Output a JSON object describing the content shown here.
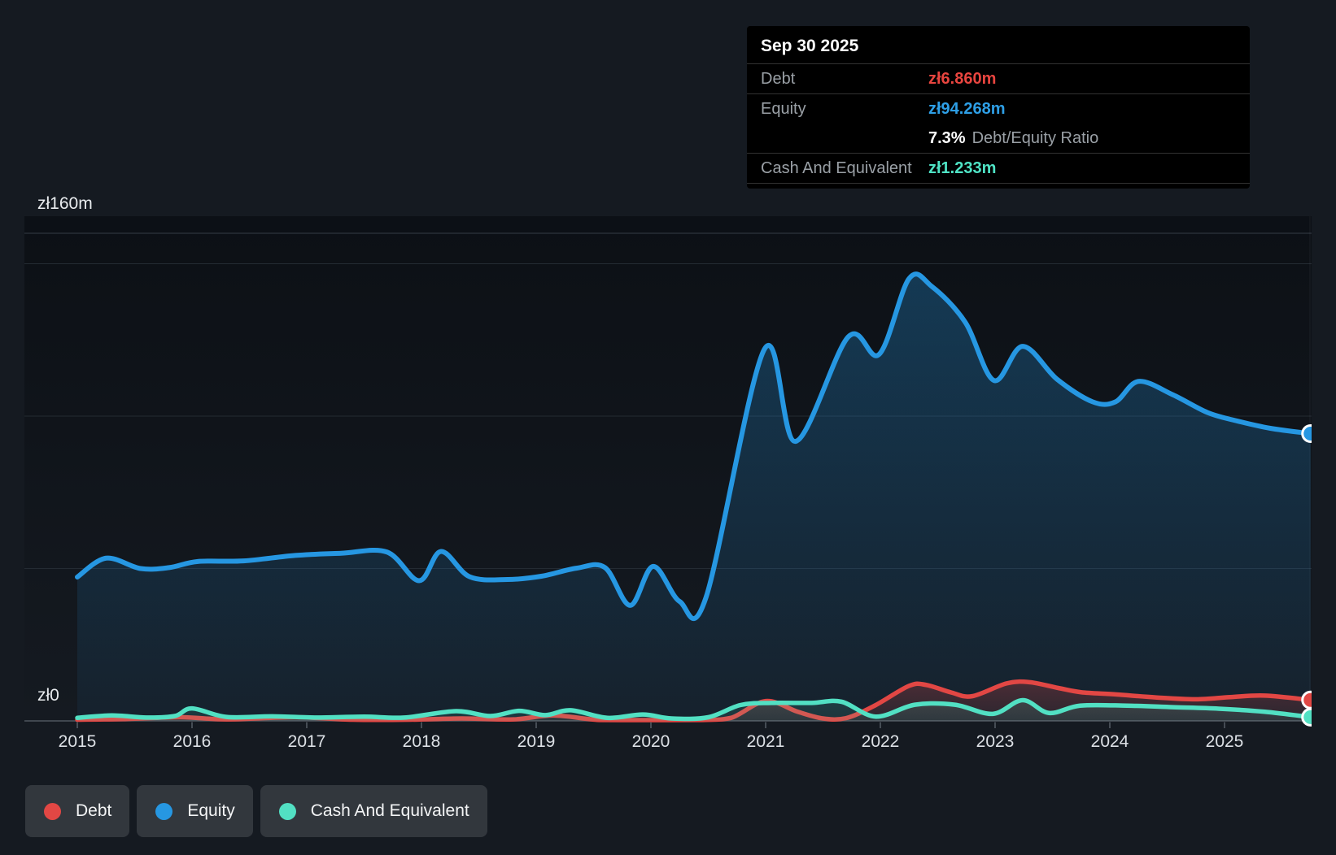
{
  "y_axis": {
    "top_label": "zł160m",
    "bottom_label": "zł0"
  },
  "x_axis": {
    "years": [
      "2015",
      "2016",
      "2017",
      "2018",
      "2019",
      "2020",
      "2021",
      "2022",
      "2023",
      "2024",
      "2025"
    ]
  },
  "tooltip": {
    "date": "Sep 30 2025",
    "rows": [
      {
        "label": "Debt",
        "value": "zł6.860m",
        "color": "#e8453f"
      },
      {
        "label": "Equity",
        "value": "zł94.268m",
        "color": "#2e9fe6"
      },
      {
        "label": "Cash And Equivalent",
        "value": "zł1.233m",
        "color": "#4fe3c5"
      }
    ],
    "ratio_value": "7.3%",
    "ratio_label": "Debt/Equity Ratio"
  },
  "legend": {
    "items": [
      {
        "label": "Debt",
        "color": "#e24744"
      },
      {
        "label": "Equity",
        "color": "#2697e2"
      },
      {
        "label": "Cash And Equivalent",
        "color": "#52e0c3"
      }
    ]
  },
  "chart_data": {
    "type": "area",
    "title": "Debt / Equity / Cash history",
    "x_unit": "decimal_year",
    "x_range": [
      2015,
      2025.75
    ],
    "y_unit": "zl_millions",
    "y_range": [
      0,
      160
    ],
    "y_gridlines_m": [
      0,
      50,
      100,
      150,
      160
    ],
    "x_tick_years": [
      2015,
      2016,
      2017,
      2018,
      2019,
      2020,
      2021,
      2022,
      2023,
      2024,
      2025
    ],
    "legend_position": "bottom-left",
    "latest": {
      "date": "Sep 30 2025",
      "debt_m": 6.86,
      "equity_m": 94.268,
      "cash_m": 1.233,
      "debt_equity_ratio_pct": 7.3
    },
    "series": [
      {
        "name": "Equity",
        "color": "#2697e2",
        "stroke_width": 6,
        "points": [
          [
            2015.0,
            47.2
          ],
          [
            2015.25,
            53.4
          ],
          [
            2015.55,
            50.0
          ],
          [
            2015.8,
            50.3
          ],
          [
            2016.05,
            52.3
          ],
          [
            2016.45,
            52.5
          ],
          [
            2016.9,
            54.3
          ],
          [
            2017.3,
            55.0
          ],
          [
            2017.7,
            55.4
          ],
          [
            2017.98,
            46.0
          ],
          [
            2018.17,
            55.6
          ],
          [
            2018.42,
            47.3
          ],
          [
            2018.75,
            46.4
          ],
          [
            2019.05,
            47.5
          ],
          [
            2019.35,
            50.1
          ],
          [
            2019.6,
            50.3
          ],
          [
            2019.82,
            37.9
          ],
          [
            2020.02,
            50.7
          ],
          [
            2020.25,
            39.2
          ],
          [
            2020.48,
            40.5
          ],
          [
            2020.99,
            122.0
          ],
          [
            2021.26,
            91.7
          ],
          [
            2021.72,
            126.0
          ],
          [
            2021.99,
            120.3
          ],
          [
            2022.25,
            145.1
          ],
          [
            2022.45,
            142.5
          ],
          [
            2022.74,
            130.8
          ],
          [
            2022.99,
            111.7
          ],
          [
            2023.24,
            122.9
          ],
          [
            2023.54,
            112.1
          ],
          [
            2023.85,
            104.7
          ],
          [
            2024.05,
            104.7
          ],
          [
            2024.25,
            111.4
          ],
          [
            2024.55,
            107.0
          ],
          [
            2024.85,
            101.2
          ],
          [
            2025.1,
            98.5
          ],
          [
            2025.4,
            96.0
          ],
          [
            2025.75,
            94.268
          ]
        ]
      },
      {
        "name": "Debt",
        "color": "#e24744",
        "stroke_width": 5.5,
        "points": [
          [
            2015.0,
            0.4
          ],
          [
            2015.4,
            0.6
          ],
          [
            2015.9,
            1.2
          ],
          [
            2016.3,
            0.5
          ],
          [
            2016.9,
            1.2
          ],
          [
            2017.4,
            0.4
          ],
          [
            2017.9,
            0.4
          ],
          [
            2018.35,
            0.8
          ],
          [
            2018.8,
            0.5
          ],
          [
            2019.15,
            1.8
          ],
          [
            2019.55,
            0.3
          ],
          [
            2020.0,
            0.2
          ],
          [
            2020.45,
            0.3
          ],
          [
            2020.7,
            1.0
          ],
          [
            2021.0,
            6.5
          ],
          [
            2021.28,
            3.0
          ],
          [
            2021.5,
            0.8
          ],
          [
            2021.7,
            0.9
          ],
          [
            2021.95,
            5.0
          ],
          [
            2022.25,
            11.5
          ],
          [
            2022.4,
            11.8
          ],
          [
            2022.62,
            9.3
          ],
          [
            2022.8,
            8.1
          ],
          [
            2023.1,
            12.3
          ],
          [
            2023.3,
            12.7
          ],
          [
            2023.55,
            10.8
          ],
          [
            2023.75,
            9.4
          ],
          [
            2024.05,
            8.7
          ],
          [
            2024.4,
            7.7
          ],
          [
            2024.75,
            7.1
          ],
          [
            2025.05,
            7.8
          ],
          [
            2025.35,
            8.3
          ],
          [
            2025.75,
            6.86
          ]
        ]
      },
      {
        "name": "Cash And Equivalent",
        "color": "#52e0c3",
        "stroke_width": 5.5,
        "points": [
          [
            2015.0,
            1.0
          ],
          [
            2015.3,
            1.8
          ],
          [
            2015.6,
            1.1
          ],
          [
            2015.85,
            1.6
          ],
          [
            2016.0,
            4.1
          ],
          [
            2016.3,
            1.3
          ],
          [
            2016.7,
            1.5
          ],
          [
            2017.1,
            1.1
          ],
          [
            2017.5,
            1.4
          ],
          [
            2017.85,
            1.1
          ],
          [
            2018.3,
            3.2
          ],
          [
            2018.6,
            1.6
          ],
          [
            2018.85,
            3.3
          ],
          [
            2019.08,
            1.9
          ],
          [
            2019.3,
            3.5
          ],
          [
            2019.62,
            1.0
          ],
          [
            2019.93,
            2.1
          ],
          [
            2020.18,
            0.8
          ],
          [
            2020.5,
            1.2
          ],
          [
            2020.78,
            5.2
          ],
          [
            2021.05,
            5.9
          ],
          [
            2021.4,
            5.9
          ],
          [
            2021.66,
            6.3
          ],
          [
            2021.96,
            1.4
          ],
          [
            2022.3,
            5.3
          ],
          [
            2022.65,
            5.3
          ],
          [
            2022.98,
            2.3
          ],
          [
            2023.24,
            6.8
          ],
          [
            2023.47,
            2.6
          ],
          [
            2023.74,
            5.0
          ],
          [
            2024.15,
            5.0
          ],
          [
            2024.55,
            4.5
          ],
          [
            2024.95,
            4.0
          ],
          [
            2025.35,
            3.0
          ],
          [
            2025.75,
            1.233
          ]
        ]
      }
    ]
  }
}
